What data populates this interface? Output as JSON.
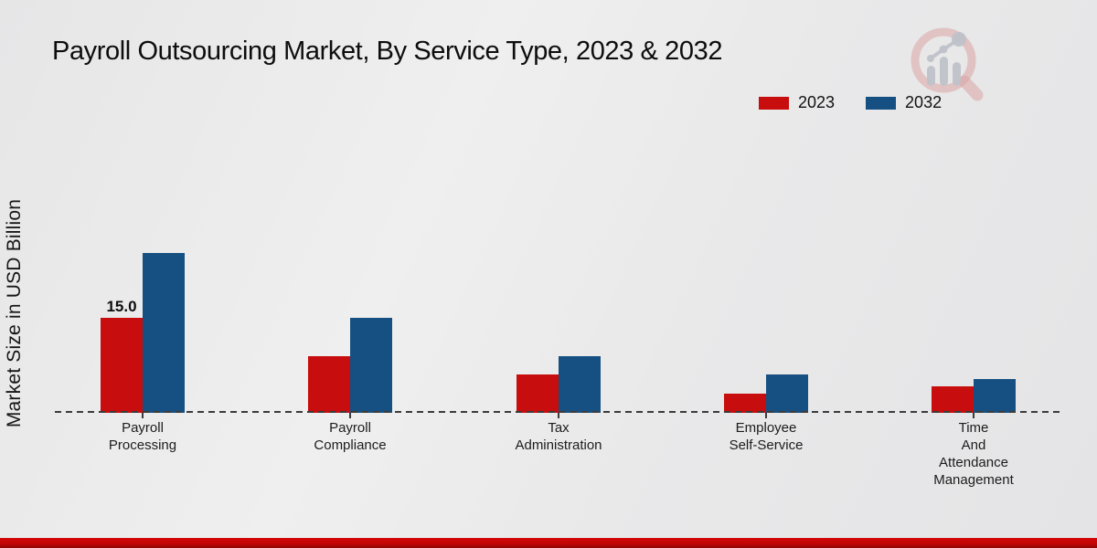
{
  "title": "Payroll Outsourcing Market, By Service Type, 2023 & 2032",
  "y_axis_label": "Market Size in USD Billion",
  "legend": {
    "position": "top-right",
    "items": [
      {
        "label": "2023",
        "color": "#c70d0d"
      },
      {
        "label": "2032",
        "color": "#165082"
      }
    ]
  },
  "chart_data": {
    "type": "bar",
    "title": "Payroll Outsourcing Market, By Service Type, 2023 & 2032",
    "ylabel": "Market Size in USD Billion",
    "xlabel": "",
    "categories": [
      "Payroll Processing",
      "Payroll Compliance",
      "Tax Administration",
      "Employee Self-Service",
      "Time And Attendance Management"
    ],
    "series": [
      {
        "name": "2023",
        "color": "#c70d0d",
        "values": [
          15.0,
          9.0,
          6.0,
          3.0,
          4.2
        ]
      },
      {
        "name": "2032",
        "color": "#165082",
        "values": [
          25.3,
          15.0,
          9.0,
          6.0,
          5.3
        ]
      }
    ],
    "annotations": [
      {
        "series_index": 0,
        "category_index": 0,
        "text": "15.0"
      }
    ],
    "ylim": [
      0,
      28
    ],
    "grid": false,
    "x_axis_style": "dashed",
    "y_axis_ticks_visible": false,
    "legend_position": "top-right"
  },
  "watermark": {
    "icon": "magnifier-bar-chart-logo"
  },
  "footer": {
    "strip_color": "#c20505"
  }
}
